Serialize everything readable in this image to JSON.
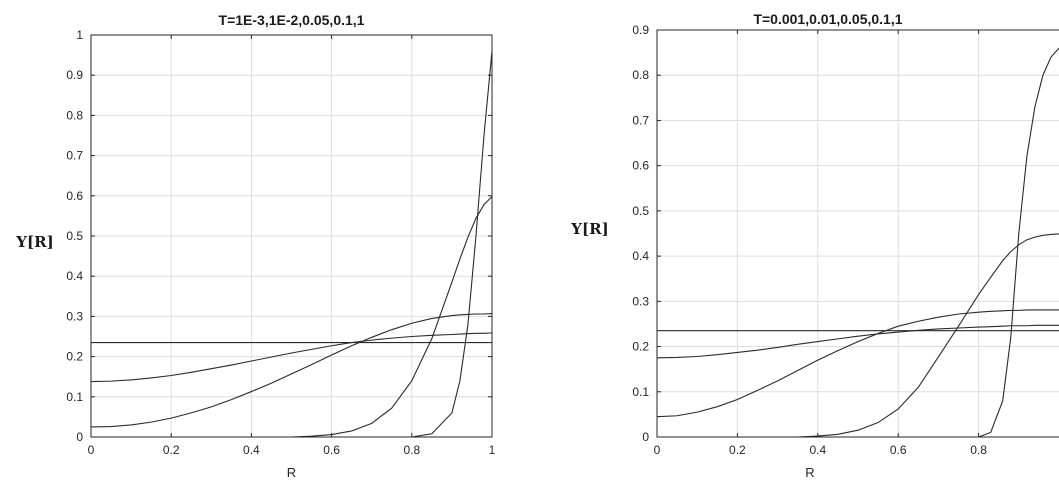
{
  "chart_data": [
    {
      "type": "line",
      "title": "T=1E-3,1E-2,0.05,0.1,1",
      "xlabel": "R",
      "ylabel_parts": [
        "Y[",
        "R",
        "]"
      ],
      "xlim": [
        0,
        1
      ],
      "ylim": [
        0,
        1
      ],
      "x_ticks": [
        "0",
        "0.2",
        "0.4",
        "0.6",
        "0.8",
        "1"
      ],
      "y_ticks": [
        "0",
        "0.1",
        "0.2",
        "0.3",
        "0.4",
        "0.5",
        "0.6",
        "0.7",
        "0.8",
        "0.9",
        "1"
      ],
      "grid": true,
      "x": [
        0,
        0.05,
        0.1,
        0.15,
        0.2,
        0.25,
        0.3,
        0.35,
        0.4,
        0.45,
        0.5,
        0.55,
        0.6,
        0.65,
        0.7,
        0.75,
        0.8,
        0.85,
        0.9,
        0.92,
        0.94,
        0.96,
        0.98,
        1
      ],
      "series": [
        {
          "values": [
            0.235,
            0.235,
            0.235,
            0.235,
            0.235,
            0.235,
            0.235,
            0.235,
            0.235,
            0.235,
            0.235,
            0.235,
            0.235,
            0.235,
            0.235,
            0.235,
            0.235,
            0.235,
            0.235,
            0.235,
            0.235,
            0.235,
            0.235,
            0.235
          ]
        },
        {
          "values": [
            0.138,
            0.139,
            0.142,
            0.147,
            0.153,
            0.161,
            0.17,
            0.179,
            0.189,
            0.199,
            0.209,
            0.218,
            0.227,
            0.235,
            0.241,
            0.246,
            0.25,
            0.253,
            0.255,
            0.256,
            0.257,
            0.258,
            0.258,
            0.259
          ]
        },
        {
          "values": [
            0.025,
            0.026,
            0.03,
            0.037,
            0.047,
            0.06,
            0.075,
            0.093,
            0.113,
            0.134,
            0.157,
            0.18,
            0.204,
            0.227,
            0.248,
            0.267,
            0.283,
            0.295,
            0.302,
            0.304,
            0.305,
            0.306,
            0.306,
            0.307
          ]
        },
        {
          "values": [
            0,
            0,
            0,
            0,
            0,
            0,
            0,
            0,
            0,
            0,
            0,
            0.002,
            0.006,
            0.015,
            0.034,
            0.072,
            0.14,
            0.245,
            0.385,
            0.443,
            0.497,
            0.544,
            0.578,
            0.598
          ]
        },
        {
          "values": [
            0,
            0,
            0,
            0,
            0,
            0,
            0,
            0,
            0,
            0,
            0,
            0,
            0,
            0,
            0,
            0,
            0,
            0.008,
            0.06,
            0.14,
            0.28,
            0.5,
            0.75,
            0.96
          ]
        }
      ]
    },
    {
      "type": "line",
      "title": "T=0.001,0.01,0.05,0.1,1",
      "xlabel": "R",
      "ylabel_parts": [
        "Y[",
        "R",
        "]"
      ],
      "xlim": [
        0,
        1
      ],
      "ylim": [
        0,
        0.9
      ],
      "x_ticks": [
        "0",
        "0.2",
        "0.4",
        "0.6",
        "0.8"
      ],
      "y_ticks": [
        "0",
        "0.1",
        "0.2",
        "0.3",
        "0.4",
        "0.5",
        "0.6",
        "0.7",
        "0.8",
        "0.9"
      ],
      "grid": true,
      "x": [
        0,
        0.05,
        0.1,
        0.15,
        0.2,
        0.25,
        0.3,
        0.35,
        0.4,
        0.45,
        0.5,
        0.55,
        0.6,
        0.65,
        0.7,
        0.75,
        0.8,
        0.83,
        0.86,
        0.88,
        0.9,
        0.92,
        0.94,
        0.96,
        0.98,
        1
      ],
      "series": [
        {
          "values": [
            0.235,
            0.235,
            0.235,
            0.235,
            0.235,
            0.235,
            0.235,
            0.235,
            0.235,
            0.235,
            0.235,
            0.235,
            0.235,
            0.235,
            0.235,
            0.235,
            0.235,
            0.235,
            0.235,
            0.235,
            0.235,
            0.235,
            0.235,
            0.235,
            0.235,
            0.235
          ]
        },
        {
          "values": [
            0.175,
            0.176,
            0.178,
            0.182,
            0.187,
            0.192,
            0.198,
            0.205,
            0.211,
            0.217,
            0.223,
            0.228,
            0.232,
            0.236,
            0.239,
            0.241,
            0.243,
            0.244,
            0.245,
            0.246,
            0.246,
            0.246,
            0.247,
            0.247,
            0.247,
            0.247
          ]
        },
        {
          "values": [
            0.045,
            0.047,
            0.055,
            0.067,
            0.083,
            0.103,
            0.124,
            0.147,
            0.17,
            0.191,
            0.211,
            0.229,
            0.245,
            0.256,
            0.265,
            0.272,
            0.276,
            0.278,
            0.279,
            0.28,
            0.28,
            0.281,
            0.281,
            0.281,
            0.281,
            0.281
          ]
        },
        {
          "values": [
            0,
            0,
            0,
            0,
            0,
            0,
            0,
            0,
            0.002,
            0.006,
            0.015,
            0.032,
            0.062,
            0.11,
            0.177,
            0.245,
            0.315,
            0.353,
            0.39,
            0.41,
            0.425,
            0.436,
            0.442,
            0.446,
            0.448,
            0.449
          ]
        },
        {
          "values": [
            0,
            0,
            0,
            0,
            0,
            0,
            0,
            0,
            0,
            0,
            0,
            0,
            0,
            0,
            0,
            0,
            0,
            0.01,
            0.08,
            0.22,
            0.45,
            0.62,
            0.73,
            0.8,
            0.84,
            0.86
          ]
        }
      ]
    }
  ]
}
